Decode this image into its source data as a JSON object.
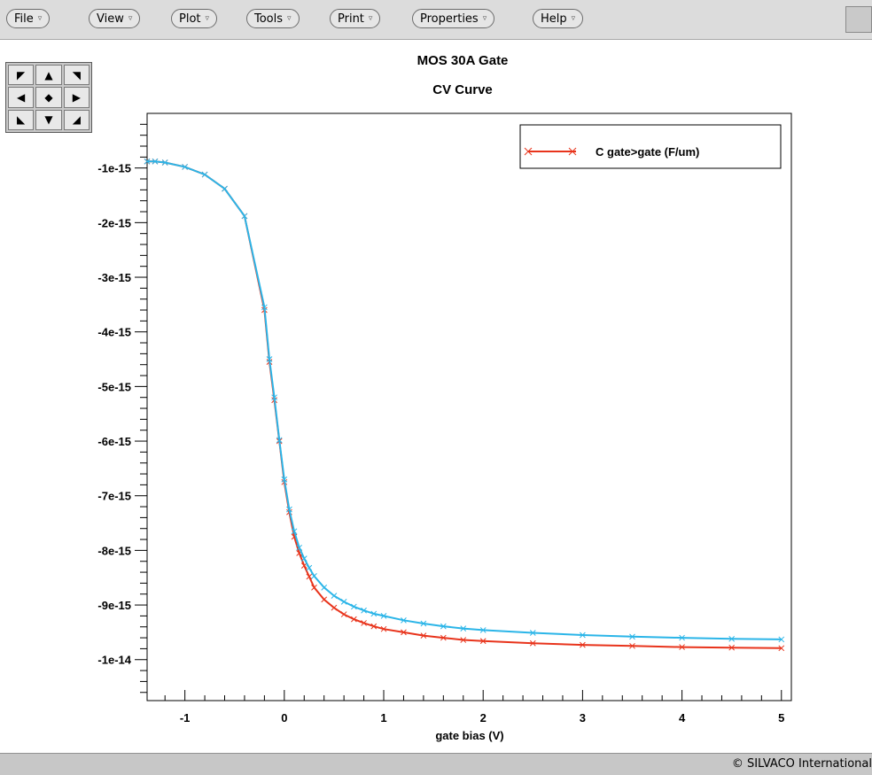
{
  "menus": [
    {
      "label": "File",
      "arrow": "▿"
    },
    {
      "label": "View",
      "arrow": "▿"
    },
    {
      "label": "Plot",
      "arrow": "▿"
    },
    {
      "label": "Tools",
      "arrow": "▿"
    },
    {
      "label": "Print",
      "arrow": "▿"
    },
    {
      "label": "Properties",
      "arrow": "▿"
    },
    {
      "label": "Help",
      "arrow": "▿"
    }
  ],
  "pan_pad": {
    "icons": [
      "pan-up-left-icon",
      "pan-up-icon",
      "pan-up-right-icon",
      "pan-left-icon",
      "pan-center-icon",
      "pan-right-icon",
      "pan-down-left-icon",
      "pan-down-icon",
      "pan-down-right-icon"
    ],
    "glyphs": [
      "◤",
      "▲",
      "◥",
      "◀",
      "◆",
      "▶",
      "◣",
      "▼",
      "◢"
    ]
  },
  "status": {
    "copyright": "© SILVACO International"
  },
  "chart_data": {
    "type": "line",
    "title": "MOS 30A Gate",
    "subtitle": "CV Curve",
    "xlabel": "gate bias (V)",
    "ylabel": "",
    "xlim": [
      -1.38,
      5.1
    ],
    "ylim": [
      -10.75,
      -0.0
    ],
    "y_unit_note": "values in units of 1e-15",
    "x_ticks": [
      -1,
      0,
      1,
      2,
      3,
      4,
      5
    ],
    "x_tick_labels": [
      "-1",
      "0",
      "1",
      "2",
      "3",
      "4",
      "5"
    ],
    "y_ticks": [
      -1,
      -2,
      -3,
      -4,
      -5,
      -6,
      -7,
      -8,
      -9,
      -10
    ],
    "y_tick_labels": [
      "-1e-15",
      "-2e-15",
      "-3e-15",
      "-4e-15",
      "-5e-15",
      "-6e-15",
      "-7e-15",
      "-8e-15",
      "-9e-15",
      "-1e-14"
    ],
    "grid": false,
    "legend": {
      "position": "top-right",
      "entries": [
        "C gate>gate (F/um)"
      ]
    },
    "colors": {
      "series_red": "#e8341c",
      "series_cyan": "#2bb5e8"
    },
    "series": [
      {
        "name": "C gate>gate (F/um)",
        "color": "#e8341c",
        "x": [
          -1.38,
          -1.3,
          -1.2,
          -1.0,
          -0.8,
          -0.6,
          -0.4,
          -0.2,
          -0.15,
          -0.1,
          -0.05,
          0.0,
          0.05,
          0.1,
          0.15,
          0.2,
          0.25,
          0.3,
          0.4,
          0.5,
          0.6,
          0.7,
          0.8,
          0.9,
          1.0,
          1.2,
          1.4,
          1.6,
          1.8,
          2.0,
          2.5,
          3.0,
          3.5,
          4.0,
          4.5,
          5.0
        ],
        "y": [
          -0.88,
          -0.88,
          -0.9,
          -0.98,
          -1.12,
          -1.38,
          -1.88,
          -3.6,
          -4.55,
          -5.25,
          -6.0,
          -6.75,
          -7.3,
          -7.75,
          -8.05,
          -8.28,
          -8.48,
          -8.68,
          -8.9,
          -9.05,
          -9.17,
          -9.26,
          -9.33,
          -9.39,
          -9.44,
          -9.5,
          -9.56,
          -9.6,
          -9.64,
          -9.66,
          -9.7,
          -9.73,
          -9.75,
          -9.77,
          -9.78,
          -9.79
        ]
      },
      {
        "name": "",
        "color": "#2bb5e8",
        "x": [
          -1.38,
          -1.3,
          -1.2,
          -1.0,
          -0.8,
          -0.6,
          -0.4,
          -0.2,
          -0.15,
          -0.1,
          -0.05,
          0.0,
          0.05,
          0.1,
          0.15,
          0.2,
          0.25,
          0.3,
          0.4,
          0.5,
          0.6,
          0.7,
          0.8,
          0.9,
          1.0,
          1.2,
          1.4,
          1.6,
          1.8,
          2.0,
          2.5,
          3.0,
          3.5,
          4.0,
          4.5,
          5.0
        ],
        "y": [
          -0.88,
          -0.88,
          -0.9,
          -0.98,
          -1.12,
          -1.38,
          -1.88,
          -3.55,
          -4.5,
          -5.2,
          -5.98,
          -6.7,
          -7.25,
          -7.65,
          -7.95,
          -8.15,
          -8.32,
          -8.47,
          -8.68,
          -8.83,
          -8.94,
          -9.03,
          -9.1,
          -9.16,
          -9.2,
          -9.28,
          -9.34,
          -9.39,
          -9.43,
          -9.46,
          -9.51,
          -9.55,
          -9.58,
          -9.6,
          -9.62,
          -9.63
        ]
      }
    ]
  }
}
